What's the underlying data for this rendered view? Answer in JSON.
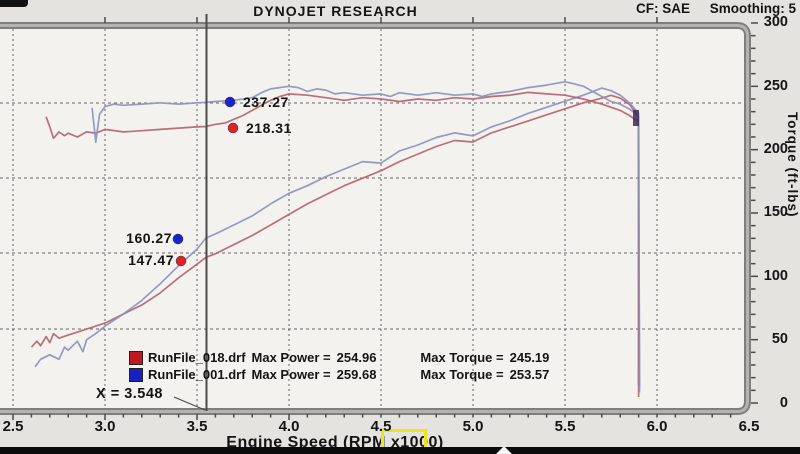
{
  "header": {
    "title": "DYNOJET RESEARCH",
    "cf": "CF: SAE",
    "smoothing": "Smoothing: 5"
  },
  "axes": {
    "x_title": "Engine Speed (RPM x1000)",
    "right_title": "Torque (ft-lbs)",
    "x_ticks": [
      "2.5",
      "3.0",
      "3.5",
      "4.0",
      "4.5",
      "5.0",
      "5.5",
      "6.0",
      "6.5"
    ],
    "torque_ticks": [
      "300",
      "250",
      "200",
      "150",
      "100",
      "50",
      "0"
    ]
  },
  "cursor": {
    "readout": "X = 3.548",
    "x_value": 3.548
  },
  "annotations": [
    {
      "value": "237.27",
      "series": "RunFile_001.drf",
      "measure": "torque",
      "color": "#1b24cc"
    },
    {
      "value": "218.31",
      "series": "RunFile_018.drf",
      "measure": "torque",
      "color": "#de2328"
    },
    {
      "value": "160.27",
      "series": "RunFile_001.drf",
      "measure": "power",
      "color": "#1b24cc"
    },
    {
      "value": "147.47",
      "series": "RunFile_018.drf",
      "measure": "power",
      "color": "#de2328"
    }
  ],
  "legend": {
    "rows": [
      {
        "file": "RunFile_018.drf",
        "power_label": "Max Power =",
        "power": "254.96",
        "torque_label": "Max Torque =",
        "torque": "245.19",
        "color": "#c01820"
      },
      {
        "file": "RunFile_001.drf",
        "power_label": "Max Power =",
        "power": "259.68",
        "torque_label": "Max Torque =",
        "torque": "253.57",
        "color": "#1822c0"
      }
    ]
  },
  "chart_data": {
    "type": "line",
    "title": "DYNOJET RESEARCH",
    "xlabel": "Engine Speed (RPM x1000)",
    "ylabel_right": "Torque (ft-lbs)",
    "xlim": [
      2.5,
      6.5
    ],
    "torque_ylim": [
      0,
      300
    ],
    "grid": true,
    "correction_factor": "SAE",
    "smoothing": 5,
    "cursor_rpm_x1000": 3.548,
    "cursor_values": {
      "run001_torque": 237.27,
      "run018_torque": 218.31,
      "run001_power": 160.27,
      "run018_power": 147.47
    },
    "series": [
      {
        "name": "RunFile_018.drf power",
        "axis": "power",
        "color": "#b4606a",
        "max": 254.96,
        "points": [
          [
            2.6,
            88
          ],
          [
            2.63,
            92
          ],
          [
            2.65,
            89
          ],
          [
            2.68,
            95
          ],
          [
            2.7,
            91
          ],
          [
            2.72,
            97
          ],
          [
            2.75,
            94
          ],
          [
            2.8,
            96
          ],
          [
            2.9,
            100
          ],
          [
            3.0,
            104
          ],
          [
            3.1,
            110
          ],
          [
            3.2,
            116
          ],
          [
            3.3,
            124
          ],
          [
            3.4,
            134
          ],
          [
            3.5,
            143
          ],
          [
            3.548,
            147.5
          ],
          [
            3.6,
            150
          ],
          [
            3.7,
            156
          ],
          [
            3.8,
            162
          ],
          [
            3.9,
            169
          ],
          [
            4.0,
            176
          ],
          [
            4.1,
            183
          ],
          [
            4.2,
            189
          ],
          [
            4.3,
            195
          ],
          [
            4.4,
            200
          ],
          [
            4.5,
            205
          ],
          [
            4.6,
            211
          ],
          [
            4.7,
            216
          ],
          [
            4.8,
            221
          ],
          [
            4.9,
            225
          ],
          [
            5.0,
            224
          ],
          [
            5.1,
            230
          ],
          [
            5.2,
            234
          ],
          [
            5.3,
            238
          ],
          [
            5.4,
            242
          ],
          [
            5.5,
            246
          ],
          [
            5.6,
            250
          ],
          [
            5.7,
            253
          ],
          [
            5.75,
            254.96
          ],
          [
            5.8,
            253
          ],
          [
            5.85,
            249
          ],
          [
            5.88,
            244
          ],
          [
            5.9,
            240
          ],
          [
            5.9,
            55
          ]
        ]
      },
      {
        "name": "RunFile_001.drf power",
        "axis": "power",
        "color": "#8a90ba",
        "max": 259.68,
        "points": [
          [
            2.62,
            75
          ],
          [
            2.65,
            80
          ],
          [
            2.7,
            83
          ],
          [
            2.75,
            80
          ],
          [
            2.78,
            88
          ],
          [
            2.8,
            86
          ],
          [
            2.85,
            92
          ],
          [
            2.88,
            85
          ],
          [
            2.9,
            93
          ],
          [
            2.95,
            97
          ],
          [
            3.0,
            102
          ],
          [
            3.1,
            110
          ],
          [
            3.2,
            119
          ],
          [
            3.3,
            130
          ],
          [
            3.4,
            142
          ],
          [
            3.5,
            153
          ],
          [
            3.548,
            160.3
          ],
          [
            3.6,
            163
          ],
          [
            3.7,
            169
          ],
          [
            3.8,
            175
          ],
          [
            3.9,
            183
          ],
          [
            4.0,
            190
          ],
          [
            4.1,
            195
          ],
          [
            4.2,
            201
          ],
          [
            4.3,
            206
          ],
          [
            4.4,
            211
          ],
          [
            4.5,
            210
          ],
          [
            4.55,
            214
          ],
          [
            4.6,
            218
          ],
          [
            4.7,
            222
          ],
          [
            4.8,
            227
          ],
          [
            4.9,
            230
          ],
          [
            5.0,
            228
          ],
          [
            5.1,
            234
          ],
          [
            5.2,
            238
          ],
          [
            5.3,
            243
          ],
          [
            5.4,
            247
          ],
          [
            5.5,
            251
          ],
          [
            5.6,
            255
          ],
          [
            5.7,
            259.68
          ],
          [
            5.75,
            258
          ],
          [
            5.8,
            255
          ],
          [
            5.85,
            250
          ],
          [
            5.9,
            243
          ],
          [
            5.905,
            58
          ]
        ]
      },
      {
        "name": "RunFile_018.drf torque",
        "axis": "torque",
        "color": "#b4606a",
        "max": 245.19,
        "points": [
          [
            2.68,
            226
          ],
          [
            2.7,
            218
          ],
          [
            2.72,
            209
          ],
          [
            2.75,
            214
          ],
          [
            2.78,
            211
          ],
          [
            2.8,
            213
          ],
          [
            2.85,
            210
          ],
          [
            2.9,
            214
          ],
          [
            2.95,
            213
          ],
          [
            3.0,
            216
          ],
          [
            3.1,
            214
          ],
          [
            3.2,
            215
          ],
          [
            3.3,
            216
          ],
          [
            3.4,
            217
          ],
          [
            3.5,
            218
          ],
          [
            3.548,
            218.3
          ],
          [
            3.6,
            220
          ],
          [
            3.65,
            221
          ],
          [
            3.7,
            224
          ],
          [
            3.75,
            227
          ],
          [
            3.8,
            231
          ],
          [
            3.85,
            235
          ],
          [
            3.9,
            239
          ],
          [
            3.95,
            242
          ],
          [
            4.0,
            244
          ],
          [
            4.1,
            243
          ],
          [
            4.2,
            241
          ],
          [
            4.3,
            239
          ],
          [
            4.4,
            241
          ],
          [
            4.5,
            240
          ],
          [
            4.6,
            238
          ],
          [
            4.7,
            240
          ],
          [
            4.8,
            239
          ],
          [
            4.9,
            241
          ],
          [
            5.0,
            240
          ],
          [
            5.1,
            242
          ],
          [
            5.2,
            243
          ],
          [
            5.3,
            245.19
          ],
          [
            5.4,
            244
          ],
          [
            5.5,
            243
          ],
          [
            5.6,
            240
          ],
          [
            5.7,
            236
          ],
          [
            5.8,
            231
          ],
          [
            5.85,
            227
          ],
          [
            5.9,
            222
          ],
          [
            5.9,
            14
          ]
        ]
      },
      {
        "name": "RunFile_001.drf torque",
        "axis": "torque",
        "color": "#8a90ba",
        "max": 253.57,
        "points": [
          [
            2.93,
            233
          ],
          [
            2.95,
            206
          ],
          [
            2.97,
            228
          ],
          [
            3.0,
            234
          ],
          [
            3.05,
            236
          ],
          [
            3.1,
            235
          ],
          [
            3.2,
            236
          ],
          [
            3.3,
            237
          ],
          [
            3.4,
            236
          ],
          [
            3.5,
            237
          ],
          [
            3.548,
            237.3
          ],
          [
            3.6,
            238
          ],
          [
            3.7,
            239
          ],
          [
            3.8,
            241
          ],
          [
            3.85,
            245
          ],
          [
            3.9,
            248
          ],
          [
            4.0,
            250
          ],
          [
            4.05,
            249
          ],
          [
            4.1,
            246
          ],
          [
            4.15,
            248
          ],
          [
            4.2,
            247
          ],
          [
            4.25,
            244
          ],
          [
            4.3,
            245
          ],
          [
            4.4,
            243
          ],
          [
            4.5,
            244
          ],
          [
            4.55,
            242
          ],
          [
            4.6,
            245
          ],
          [
            4.7,
            243
          ],
          [
            4.8,
            245
          ],
          [
            4.9,
            243
          ],
          [
            5.0,
            244
          ],
          [
            5.05,
            242
          ],
          [
            5.1,
            244
          ],
          [
            5.2,
            246
          ],
          [
            5.3,
            249
          ],
          [
            5.4,
            251
          ],
          [
            5.5,
            253.57
          ],
          [
            5.55,
            252
          ],
          [
            5.6,
            250
          ],
          [
            5.65,
            246
          ],
          [
            5.7,
            242
          ],
          [
            5.75,
            238
          ],
          [
            5.8,
            236
          ],
          [
            5.85,
            232
          ],
          [
            5.88,
            229
          ],
          [
            5.9,
            226
          ],
          [
            5.905,
            12
          ]
        ]
      }
    ]
  }
}
